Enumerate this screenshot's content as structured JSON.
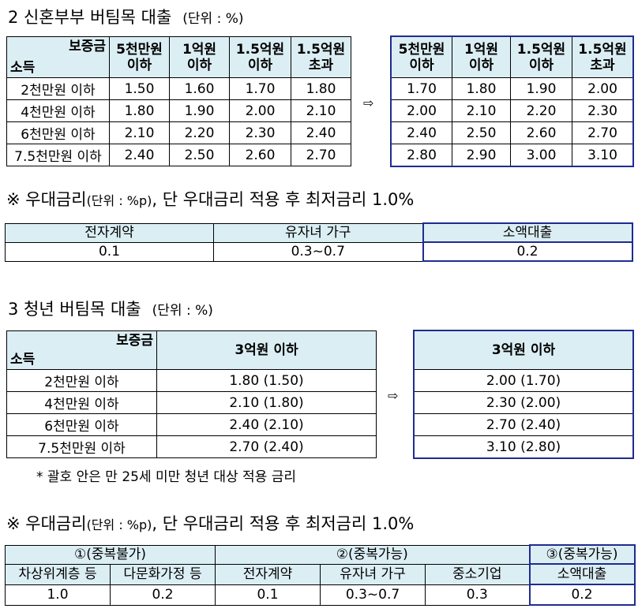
{
  "s2": {
    "heading": "2 신혼부부 버팀목 대출",
    "unit": "(단위 : %)",
    "corner_top": "보증금",
    "corner_bottom": "소득",
    "cols": [
      [
        "5천만원",
        "이하"
      ],
      [
        "1억원",
        "이하"
      ],
      [
        "1.5억원",
        "이하"
      ],
      [
        "1.5억원",
        "초과"
      ]
    ],
    "rows": [
      "2천만원 이하",
      "4천만원 이하",
      "6천만원 이하",
      "7.5천만원 이하"
    ],
    "before": [
      [
        "1.50",
        "1.60",
        "1.70",
        "1.80"
      ],
      [
        "1.80",
        "1.90",
        "2.00",
        "2.10"
      ],
      [
        "2.10",
        "2.20",
        "2.30",
        "2.40"
      ],
      [
        "2.40",
        "2.50",
        "2.60",
        "2.70"
      ]
    ],
    "after": [
      [
        "1.70",
        "1.80",
        "1.90",
        "2.00"
      ],
      [
        "2.00",
        "2.10",
        "2.20",
        "2.30"
      ],
      [
        "2.40",
        "2.50",
        "2.60",
        "2.70"
      ],
      [
        "2.80",
        "2.90",
        "3.00",
        "3.10"
      ]
    ],
    "arrow": "⇨"
  },
  "pref1": {
    "note_main": "※  우대금리",
    "note_unit": "(단위 : %p)",
    "note_tail": ", 단 우대금리 적용 후 최저금리 1.0%",
    "headers": [
      "전자계약",
      "유자녀 가구",
      "소액대출"
    ],
    "values": [
      "0.1",
      "0.3~0.7",
      "0.2"
    ]
  },
  "s3": {
    "heading": "3 청년 버팀목 대출",
    "unit": "(단위 : %)",
    "corner_top": "보증금",
    "corner_bottom": "소득",
    "col": "3억원 이하",
    "rows": [
      "2천만원 이하",
      "4천만원 이하",
      "6천만원 이하",
      "7.5천만원 이하"
    ],
    "before": [
      "1.80 (1.50)",
      "2.10 (1.80)",
      "2.40 (2.10)",
      "2.70 (2.40)"
    ],
    "after": [
      "2.00 (1.70)",
      "2.30 (2.00)",
      "2.70 (2.40)",
      "3.10 (2.80)"
    ],
    "arrow": "⇨",
    "footnote": "* 괄호 안은 만 25세 미만 청년 대상 적용 금리"
  },
  "pref2": {
    "note_main": "※  우대금리",
    "note_unit": "(단위 : %p)",
    "note_tail": ", 단 우대금리 적용 후 최저금리 1.0%",
    "groups": [
      "①(중복불가)",
      "②(중복가능)",
      "③(중복가능)"
    ],
    "headers": [
      "차상위계층 등",
      "다문화가정 등",
      "전자계약",
      "유자녀 가구",
      "중소기업",
      "소액대출"
    ],
    "values": [
      "1.0",
      "0.2",
      "0.1",
      "0.3~0.7",
      "0.3",
      "0.2"
    ]
  }
}
